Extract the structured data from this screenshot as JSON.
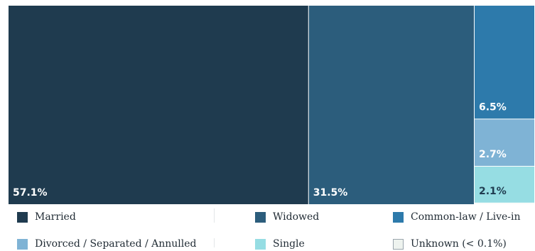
{
  "chart_data": {
    "type": "treemap",
    "items": [
      {
        "name": "Married",
        "value": 57.1,
        "label": "57.1%",
        "color": "#1f3b4f"
      },
      {
        "name": "Widowed",
        "value": 31.5,
        "label": "31.5%",
        "color": "#2c5d7c"
      },
      {
        "name": "Common-law / Live-in",
        "value": 6.5,
        "label": "6.5%",
        "color": "#2d7aab"
      },
      {
        "name": "Divorced / Separated / Annulled",
        "value": 2.7,
        "label": "2.7%",
        "color": "#7fb3d5"
      },
      {
        "name": "Single",
        "value": 2.1,
        "label": "2.1%",
        "color": "#96dde3"
      },
      {
        "name": "Unknown (< 0.1%)",
        "value": 0.05,
        "label": "",
        "color": "#eef3ef"
      }
    ],
    "legend": {
      "position": "bottom"
    }
  }
}
